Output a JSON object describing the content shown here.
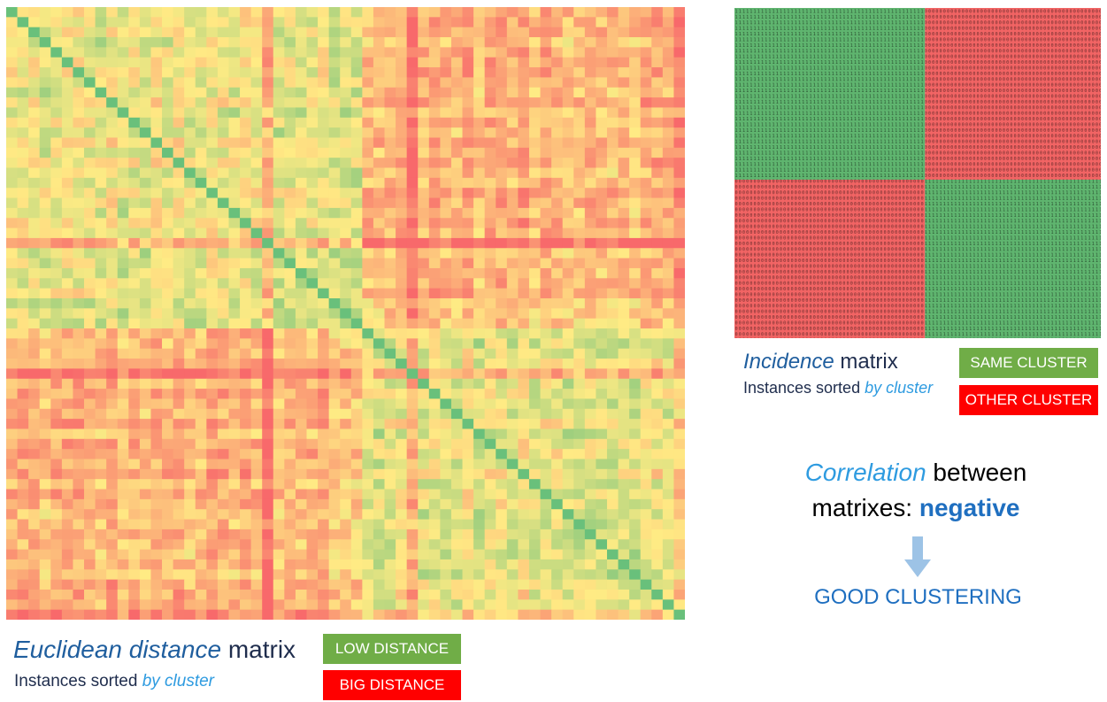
{
  "distance_matrix": {
    "title_emphasis": "Euclidean distance",
    "title_rest": " matrix",
    "subtitle_prefix": "Instances sorted ",
    "subtitle_emphasis": "by cluster",
    "size": 61,
    "cluster_sizes": [
      32,
      29
    ],
    "legend": [
      {
        "label": "LOW DISTANCE",
        "color": "#70ad47"
      },
      {
        "label": "BIG DISTANCE",
        "color": "#ff0000"
      }
    ]
  },
  "incidence_matrix": {
    "title_emphasis": "Incidence",
    "title_rest": " matrix",
    "subtitle_prefix": "Instances sorted ",
    "subtitle_emphasis": "by cluster",
    "cluster_split": 0.52,
    "same_value": "1",
    "other_value": "0",
    "legend": [
      {
        "label": "SAME CLUSTER",
        "color": "#70ad47"
      },
      {
        "label": "OTHER CLUSTER",
        "color": "#ff0000"
      }
    ]
  },
  "correlation": {
    "line1_emphasis": "Correlation",
    "line1_rest": " between",
    "line2_prefix": "matrixes: ",
    "line2_strong": "negative",
    "conclusion": "GOOD CLUSTERING"
  },
  "colors": {
    "low": "#63be7b",
    "mid": "#ffeb84",
    "high": "#f8696b",
    "same_cluster": "#5fb56f",
    "other_cluster": "#f26464",
    "arrow": "#9dc3e6"
  }
}
